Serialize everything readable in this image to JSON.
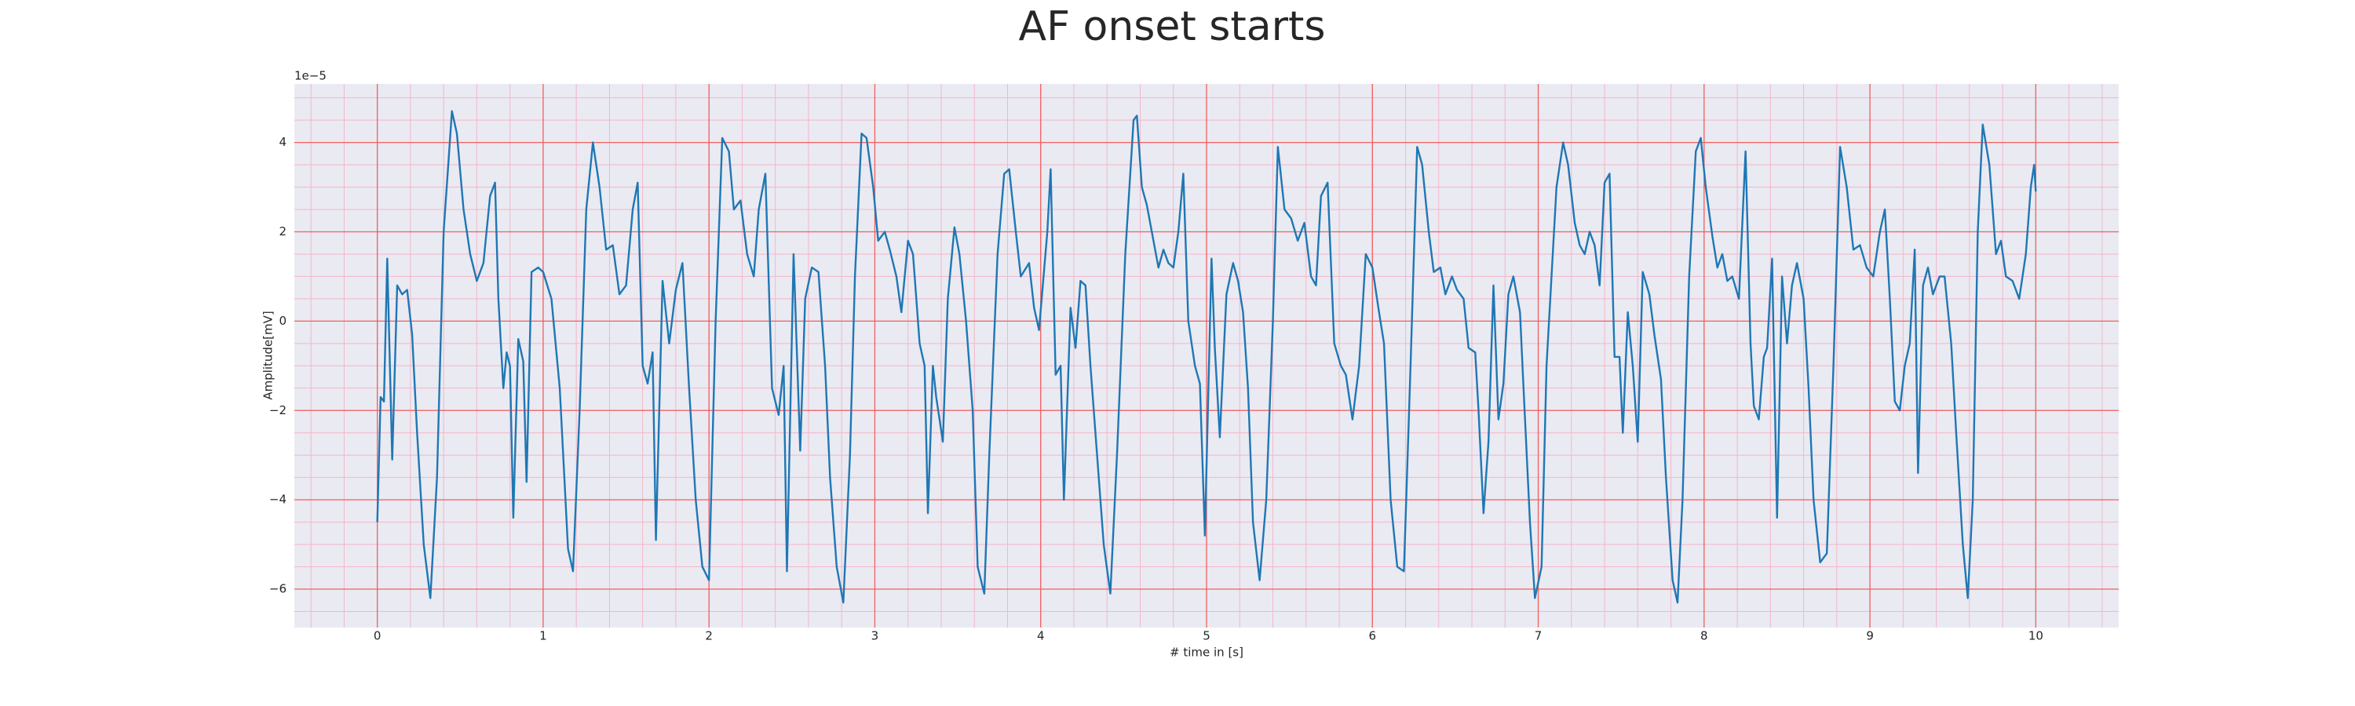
{
  "chart_data": {
    "type": "line",
    "title": "AF onset starts",
    "x_label": "# time in [s]",
    "y_label": "Amplitude[mV]",
    "offset_text": "1e−5",
    "xlim": [
      -0.5,
      10.5
    ],
    "ylim": [
      -6.86,
      5.31
    ],
    "xticks": [
      0,
      1,
      2,
      3,
      4,
      5,
      6,
      7,
      8,
      9,
      10
    ],
    "yticks": [
      {
        "value": -6,
        "label": "−6"
      },
      {
        "value": -4,
        "label": "−4"
      },
      {
        "value": -2,
        "label": "−2"
      },
      0,
      2,
      4
    ],
    "grid": true,
    "minor_grid": true,
    "x": [
      0,
      0.02,
      0.04,
      0.06,
      0.09,
      0.12,
      0.15,
      0.18,
      0.21,
      0.24,
      0.28,
      0.32,
      0.36,
      0.4,
      0.45,
      0.48,
      0.52,
      0.56,
      0.6,
      0.64,
      0.68,
      0.71,
      0.73,
      0.76,
      0.78,
      0.8,
      0.82,
      0.85,
      0.88,
      0.9,
      0.93,
      0.97,
      1.0,
      1.05,
      1.1,
      1.15,
      1.18,
      1.22,
      1.26,
      1.3,
      1.34,
      1.38,
      1.42,
      1.46,
      1.5,
      1.54,
      1.57,
      1.6,
      1.63,
      1.66,
      1.68,
      1.72,
      1.76,
      1.8,
      1.84,
      1.88,
      1.92,
      1.96,
      2.0,
      2.04,
      2.08,
      2.12,
      2.15,
      2.19,
      2.23,
      2.27,
      2.3,
      2.34,
      2.38,
      2.42,
      2.45,
      2.47,
      2.51,
      2.55,
      2.58,
      2.62,
      2.66,
      2.7,
      2.73,
      2.77,
      2.81,
      2.85,
      2.88,
      2.92,
      2.95,
      2.99,
      3.02,
      3.06,
      3.09,
      3.13,
      3.16,
      3.2,
      3.23,
      3.27,
      3.3,
      3.32,
      3.35,
      3.37,
      3.41,
      3.44,
      3.48,
      3.51,
      3.55,
      3.59,
      3.62,
      3.66,
      3.69,
      3.74,
      3.78,
      3.81,
      3.85,
      3.88,
      3.93,
      3.96,
      3.99,
      4.04,
      4.06,
      4.09,
      4.12,
      4.14,
      4.18,
      4.21,
      4.24,
      4.27,
      4.3,
      4.34,
      4.38,
      4.42,
      4.46,
      4.51,
      4.56,
      4.58,
      4.61,
      4.64,
      4.68,
      4.71,
      4.74,
      4.77,
      4.8,
      4.83,
      4.86,
      4.89,
      4.93,
      4.96,
      4.99,
      5.03,
      5.05,
      5.08,
      5.12,
      5.16,
      5.19,
      5.22,
      5.25,
      5.28,
      5.32,
      5.36,
      5.4,
      5.43,
      5.47,
      5.51,
      5.55,
      5.59,
      5.63,
      5.66,
      5.69,
      5.73,
      5.77,
      5.81,
      5.84,
      5.88,
      5.92,
      5.96,
      6.0,
      6.04,
      6.07,
      6.11,
      6.15,
      6.19,
      6.23,
      6.27,
      6.3,
      6.34,
      6.37,
      6.41,
      6.44,
      6.48,
      6.51,
      6.55,
      6.58,
      6.62,
      6.64,
      6.67,
      6.7,
      6.73,
      6.76,
      6.79,
      6.82,
      6.85,
      6.89,
      6.91,
      6.95,
      6.98,
      7.02,
      7.05,
      7.11,
      7.15,
      7.18,
      7.22,
      7.25,
      7.28,
      7.31,
      7.34,
      7.37,
      7.4,
      7.43,
      7.46,
      7.49,
      7.51,
      7.54,
      7.57,
      7.6,
      7.63,
      7.67,
      7.7,
      7.74,
      7.77,
      7.81,
      7.84,
      7.87,
      7.91,
      7.95,
      7.98,
      8.01,
      8.05,
      8.08,
      8.11,
      8.14,
      8.17,
      8.21,
      8.25,
      8.28,
      8.3,
      8.33,
      8.36,
      8.38,
      8.41,
      8.44,
      8.47,
      8.5,
      8.53,
      8.56,
      8.6,
      8.63,
      8.66,
      8.7,
      8.74,
      8.78,
      8.82,
      8.86,
      8.9,
      8.94,
      8.98,
      9.02,
      9.06,
      9.09,
      9.12,
      9.15,
      9.18,
      9.21,
      9.24,
      9.27,
      9.29,
      9.32,
      9.35,
      9.38,
      9.42,
      9.45,
      9.49,
      9.52,
      9.56,
      9.59,
      9.62,
      9.65,
      9.68,
      9.72,
      9.76,
      9.79,
      9.82,
      9.86,
      9.9,
      9.94,
      9.97,
      9.99,
      10.0
    ],
    "series": [
      {
        "color": "#1f77b4",
        "values": [
          -4.5,
          -1.7,
          -1.8,
          1.4,
          -3.1,
          0.8,
          0.6,
          0.7,
          -0.3,
          -2.5,
          -5,
          -6.2,
          -3.5,
          2,
          4.7,
          4.2,
          2.5,
          1.5,
          0.9,
          1.3,
          2.8,
          3.1,
          0.5,
          -1.5,
          -0.7,
          -1.0,
          -4.4,
          -0.4,
          -0.9,
          -3.6,
          1.1,
          1.2,
          1.1,
          0.5,
          -1.5,
          -5.1,
          -5.6,
          -2,
          2.5,
          4.0,
          3,
          1.6,
          1.7,
          0.6,
          0.8,
          2.5,
          3.1,
          -1,
          -1.4,
          -0.7,
          -4.9,
          0.9,
          -0.5,
          0.7,
          1.3,
          -1.5,
          -4,
          -5.5,
          -5.8,
          0,
          4.1,
          3.8,
          2.5,
          2.7,
          1.5,
          1.0,
          2.5,
          3.3,
          -1.5,
          -2.1,
          -1,
          -5.6,
          1.5,
          -2.9,
          0.5,
          1.2,
          1.1,
          -1,
          -3.5,
          -5.5,
          -6.3,
          -3,
          1,
          4.2,
          4.1,
          3,
          1.8,
          2,
          1.6,
          1,
          0.2,
          1.8,
          1.5,
          -0.5,
          -1,
          -4.3,
          -1,
          -1.7,
          -2.7,
          0.5,
          2.1,
          1.5,
          0,
          -2,
          -5.5,
          -6.1,
          -3,
          1.5,
          3.3,
          3.4,
          2,
          1.0,
          1.3,
          0.3,
          -0.2,
          2,
          3.4,
          -1.2,
          -1,
          -4,
          0.3,
          -0.6,
          0.9,
          0.8,
          -1,
          -3,
          -5,
          -6.1,
          -3,
          1.5,
          4.5,
          4.6,
          3,
          2.6,
          1.8,
          1.2,
          1.6,
          1.3,
          1.2,
          2,
          3.3,
          0,
          -1,
          -1.4,
          -4.8,
          1.4,
          -0.6,
          -2.6,
          0.6,
          1.3,
          0.9,
          0.2,
          -1.5,
          -4.5,
          -5.8,
          -4,
          0,
          3.9,
          2.5,
          2.3,
          1.8,
          2.2,
          1,
          0.8,
          2.8,
          3.1,
          -0.5,
          -1,
          -1.2,
          -2.2,
          -1,
          1.5,
          1.2,
          0.2,
          -0.5,
          -4,
          -5.5,
          -5.6,
          -1,
          3.9,
          3.5,
          2,
          1.1,
          1.2,
          0.6,
          1,
          0.7,
          0.5,
          -0.6,
          -0.7,
          -2,
          -4.3,
          -2.7,
          0.8,
          -2.2,
          -1.4,
          0.6,
          1,
          0.2,
          -1.4,
          -4.5,
          -6.2,
          -5.5,
          -1,
          3,
          4,
          3.5,
          2.2,
          1.7,
          1.5,
          2,
          1.7,
          0.8,
          3.1,
          3.3,
          -0.8,
          -0.8,
          -2.5,
          0.2,
          -1,
          -2.7,
          1.1,
          0.6,
          -0.3,
          -1.3,
          -3.5,
          -5.8,
          -6.3,
          -4,
          1,
          3.8,
          4.1,
          3,
          1.9,
          1.2,
          1.5,
          0.9,
          1.0,
          0.5,
          3.8,
          -0.5,
          -1.9,
          -2.2,
          -0.8,
          -0.6,
          1.4,
          -4.4,
          1,
          -0.5,
          0.8,
          1.3,
          0.5,
          -1.5,
          -4,
          -5.4,
          -5.2,
          -1,
          3.9,
          3.0,
          1.6,
          1.7,
          1.2,
          1.0,
          2.0,
          2.5,
          0.5,
          -1.8,
          -2.0,
          -1.0,
          -0.5,
          1.6,
          -3.4,
          0.8,
          1.2,
          0.6,
          1.0,
          1.0,
          -0.5,
          -2.5,
          -5,
          -6.2,
          -4,
          2,
          4.4,
          3.5,
          1.5,
          1.8,
          1.0,
          0.9,
          0.5,
          1.5,
          3.0,
          3.5,
          2.9
        ]
      }
    ]
  }
}
